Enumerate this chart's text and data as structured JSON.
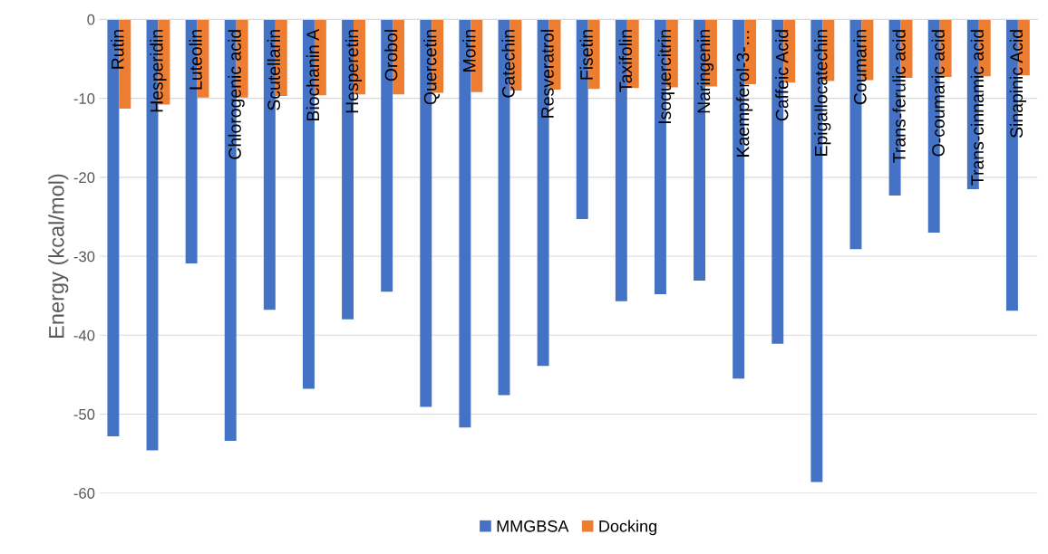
{
  "chart_data": {
    "type": "bar",
    "ylabel": "Energy (kcal/mol)",
    "categories": [
      "Rutin",
      "Hesperidin",
      "Luteolin",
      "Chlorogenic acid",
      "Scutellarin",
      "Biochanin A",
      "Hesperetin",
      "Orobol",
      "Quercetin",
      "Morin",
      "Catechin",
      "Resveratrol",
      "Fisetin",
      "Taxifolin",
      "Isoquercitrin",
      "Naringenin",
      "Kaempferol-3-…",
      "Caffeic Acid",
      "Epigallocatechin",
      "Coumarin",
      "Trans-ferulic acid",
      "O-coumaric acid",
      "Trans-cinnamic acid",
      "Sinapinic Acid"
    ],
    "series": [
      {
        "name": "MMGBSA",
        "color": "#4472c4",
        "values": [
          -52.8,
          -54.6,
          -30.9,
          -53.4,
          -36.8,
          -46.8,
          -38.0,
          -34.5,
          -49.1,
          -51.7,
          -47.6,
          -43.9,
          -25.3,
          -35.7,
          -34.8,
          -33.1,
          -45.5,
          -41.1,
          -58.6,
          -29.1,
          -22.3,
          -27.0,
          -21.5,
          -36.9
        ]
      },
      {
        "name": "Docking",
        "color": "#ed7d31",
        "values": [
          -11.3,
          -10.8,
          -9.9,
          -9.9,
          -9.7,
          -9.6,
          -9.5,
          -9.5,
          -9.3,
          -9.2,
          -9.0,
          -8.9,
          -8.8,
          -8.7,
          -8.6,
          -8.5,
          -8.2,
          -8.0,
          -7.8,
          -7.7,
          -7.4,
          -7.3,
          -7.2,
          -7.1
        ]
      }
    ],
    "ylim": [
      -60,
      0
    ],
    "yticks": [
      -60,
      -50,
      -40,
      -30,
      -20,
      -10,
      0
    ],
    "grid": "y",
    "legend": "bottom",
    "tick_labels": "y"
  }
}
